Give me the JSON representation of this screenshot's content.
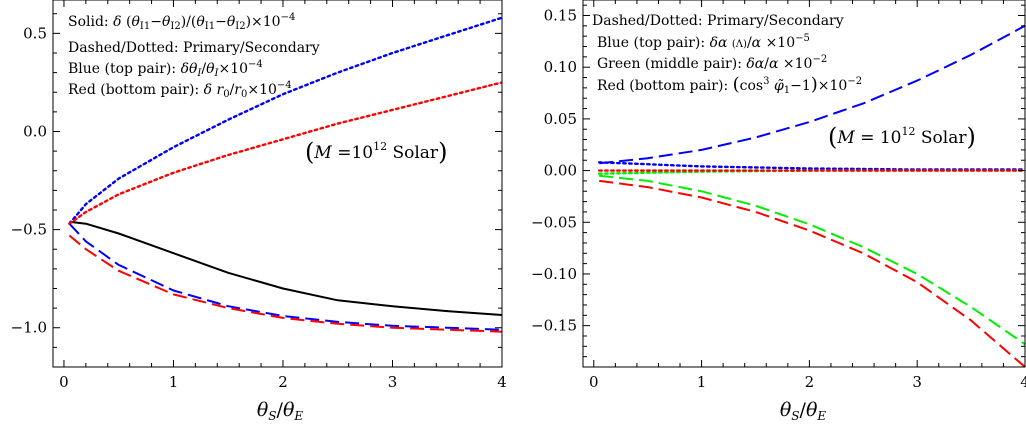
{
  "chart_data": [
    {
      "type": "line",
      "x_axis": {
        "ticks": [
          "0",
          "1",
          "2",
          "3",
          "4"
        ],
        "xlim": [
          -0.1,
          4.0
        ],
        "label": "θS/θE"
      },
      "y_axis": {
        "ticks": [
          "0.5",
          "0.0",
          "−0.5",
          "−1.0"
        ],
        "tick_values": [
          0.5,
          0.0,
          -0.5,
          -1.0
        ],
        "ylim": [
          -1.2,
          0.67
        ]
      },
      "annotations": [
        "Solid: δ (θI1−θI2)/(θI1−θI2)×10−4",
        "Dashed/Dotted: Primary/Secondary",
        "Blue (top pair):  δθI/θI×10−4",
        "Red (bottom pair): δ r0/r0×10−4"
      ],
      "box_label": "(M =10^12 Solar)",
      "series": [
        {
          "color": "#000000",
          "style": "solid",
          "x": [
            0.05,
            0.2,
            0.5,
            1.0,
            1.5,
            2.0,
            2.5,
            3.0,
            3.5,
            4.0
          ],
          "values": [
            -0.46,
            -0.47,
            -0.52,
            -0.62,
            -0.72,
            -0.8,
            -0.86,
            -0.89,
            -0.915,
            -0.935
          ]
        },
        {
          "color": "#0000ff",
          "style": "dashed",
          "x": [
            0.05,
            0.2,
            0.5,
            1.0,
            1.5,
            2.0,
            2.5,
            3.0,
            3.5,
            4.0
          ],
          "values": [
            -0.47,
            -0.56,
            -0.68,
            -0.81,
            -0.89,
            -0.94,
            -0.97,
            -0.99,
            -1.0,
            -1.01
          ]
        },
        {
          "color": "#ff0000",
          "style": "dashed",
          "x": [
            0.05,
            0.2,
            0.5,
            1.0,
            1.5,
            2.0,
            2.5,
            3.0,
            3.5,
            4.0
          ],
          "values": [
            -0.53,
            -0.6,
            -0.71,
            -0.83,
            -0.9,
            -0.95,
            -0.98,
            -1.0,
            -1.01,
            -1.02
          ]
        },
        {
          "color": "#0000ff",
          "style": "dotted",
          "x": [
            0.05,
            0.2,
            0.5,
            1.0,
            1.5,
            2.0,
            2.5,
            3.0,
            3.5,
            4.0
          ],
          "values": [
            -0.47,
            -0.37,
            -0.24,
            -0.08,
            0.06,
            0.19,
            0.3,
            0.4,
            0.49,
            0.58
          ]
        },
        {
          "color": "#ff0000",
          "style": "dotted",
          "x": [
            0.05,
            0.2,
            0.5,
            1.0,
            1.5,
            2.0,
            2.5,
            3.0,
            3.5,
            4.0
          ],
          "values": [
            -0.47,
            -0.41,
            -0.32,
            -0.21,
            -0.12,
            -0.04,
            0.04,
            0.11,
            0.18,
            0.25
          ]
        }
      ]
    },
    {
      "type": "line",
      "x_axis": {
        "ticks": [
          "0",
          "1",
          "2",
          "3",
          "4"
        ],
        "xlim": [
          -0.1,
          4.0
        ],
        "label": "θS/θE"
      },
      "y_axis": {
        "ticks": [
          "0.15",
          "0.10",
          "0.05",
          "0.00",
          "−0.05",
          "−0.10",
          "−0.15"
        ],
        "tick_values": [
          0.15,
          0.1,
          0.05,
          0.0,
          -0.05,
          -0.1,
          -0.15
        ],
        "ylim": [
          -0.19,
          0.165
        ]
      },
      "annotations": [
        "Dashed/Dotted: Primary/Secondary",
        "Blue (top pair): δα (Λ)/α ×10−5",
        "Green (middle pair): δα/α ×10−2",
        "Red (bottom pair): (cos3 φ̃1−1)×10−2"
      ],
      "box_label": "(M = 10^12 Solar)",
      "series": [
        {
          "color": "#0000ff",
          "style": "dashed",
          "x": [
            0.05,
            0.5,
            1.0,
            1.5,
            2.0,
            2.5,
            3.0,
            3.5,
            4.0
          ],
          "values": [
            0.007,
            0.012,
            0.02,
            0.032,
            0.047,
            0.065,
            0.087,
            0.112,
            0.14
          ]
        },
        {
          "color": "#0000ff",
          "style": "dotted",
          "x": [
            0.05,
            1.0,
            2.0,
            3.0,
            4.0
          ],
          "values": [
            0.008,
            0.004,
            0.002,
            0.001,
            0.001
          ]
        },
        {
          "color": "#00ee00",
          "style": "dotted",
          "x": [
            0.05,
            1.0,
            2.0,
            3.0,
            4.0
          ],
          "values": [
            -0.003,
            -0.001,
            0.0,
            0.0,
            0.0
          ]
        },
        {
          "color": "#ff0000",
          "style": "dotted",
          "x": [
            0.05,
            1.0,
            2.0,
            3.0,
            4.0
          ],
          "values": [
            0.0,
            0.0,
            0.0,
            0.0,
            0.0
          ]
        },
        {
          "color": "#00ee00",
          "style": "dashed",
          "x": [
            0.05,
            0.5,
            1.0,
            1.5,
            2.0,
            2.5,
            3.0,
            3.5,
            4.0
          ],
          "values": [
            -0.005,
            -0.01,
            -0.02,
            -0.034,
            -0.052,
            -0.074,
            -0.1,
            -0.132,
            -0.168
          ]
        },
        {
          "color": "#ff0000",
          "style": "dashed",
          "x": [
            0.05,
            0.5,
            1.0,
            1.5,
            2.0,
            2.5,
            3.0,
            3.5,
            4.0
          ],
          "values": [
            -0.01,
            -0.016,
            -0.026,
            -0.04,
            -0.058,
            -0.08,
            -0.108,
            -0.145,
            -0.19
          ]
        }
      ]
    }
  ]
}
